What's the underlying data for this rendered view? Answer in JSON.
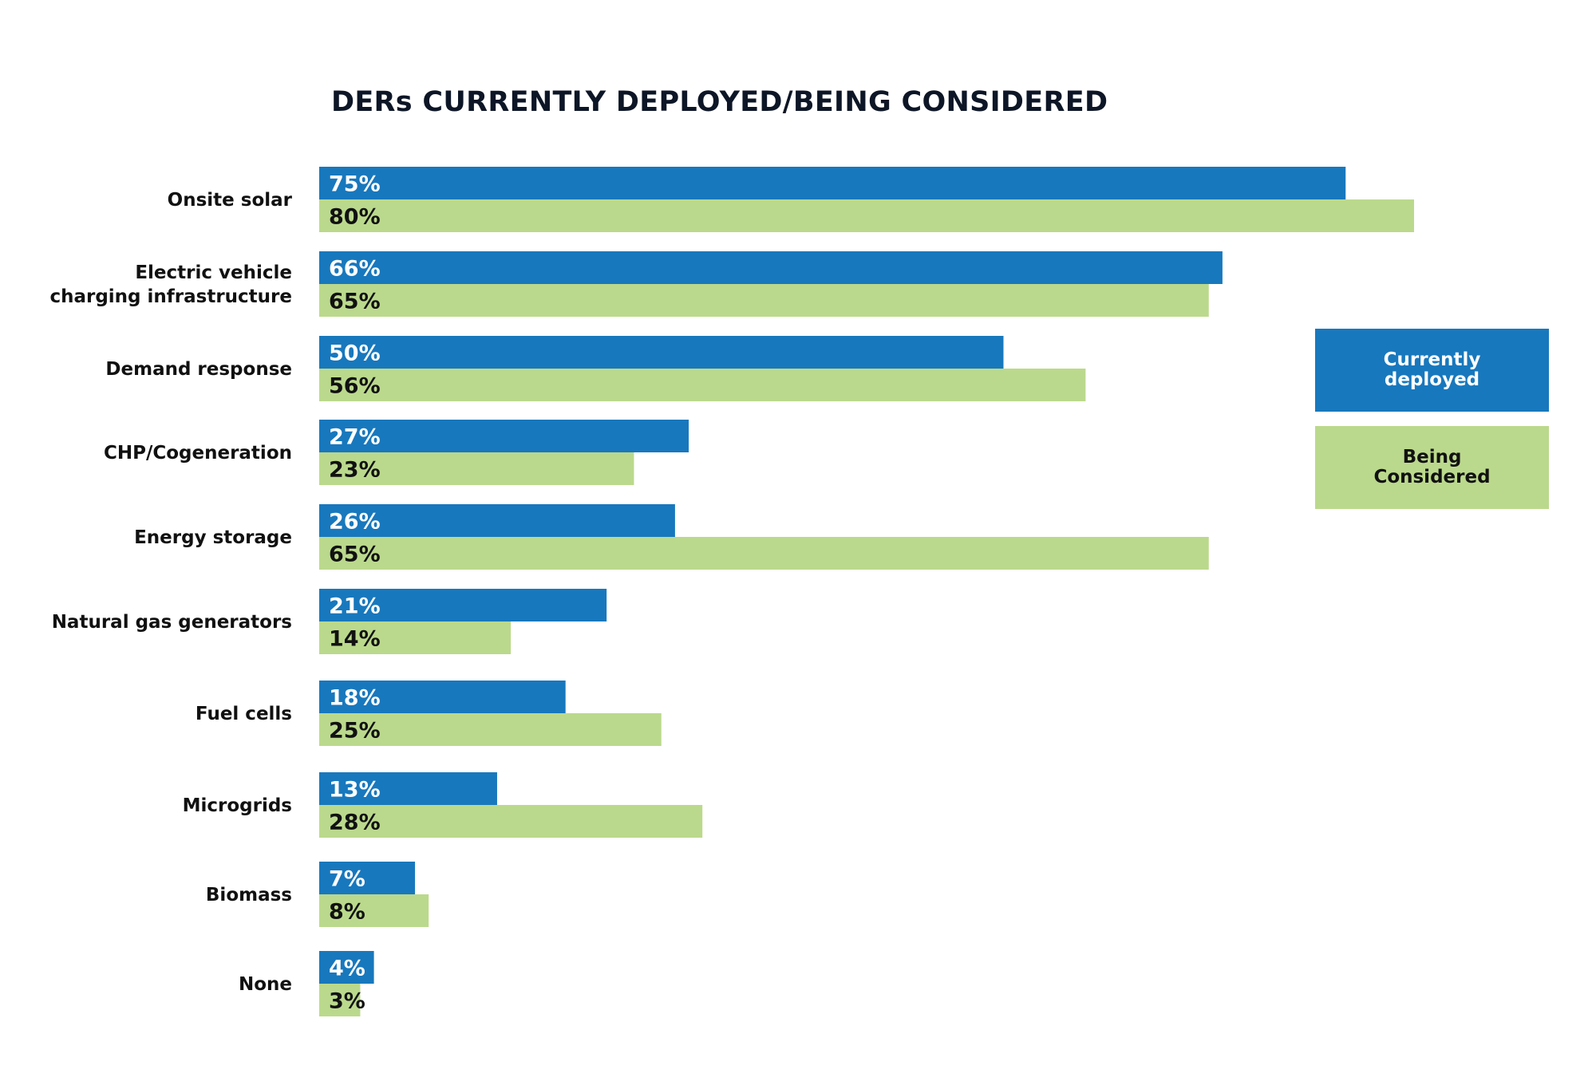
{
  "colors": {
    "deployed": "#1878bd",
    "considered": "#bbd98c",
    "deployed_label": "#ffffff",
    "considered_label": "#111111"
  },
  "chart_data": {
    "type": "bar",
    "orientation": "horizontal",
    "title": "DERs CURRENTLY DEPLOYED/BEING CONSIDERED",
    "categories": [
      [
        "Onsite solar"
      ],
      [
        "Electric vehicle",
        "charging infrastructure"
      ],
      [
        "Demand response"
      ],
      [
        "CHP/Cogeneration"
      ],
      [
        "Energy storage"
      ],
      [
        "Natural gas generators"
      ],
      [
        "Fuel cells"
      ],
      [
        "Microgrids"
      ],
      [
        "Biomass"
      ],
      [
        "None"
      ]
    ],
    "series": [
      {
        "name": "Currently deployed",
        "values": [
          75,
          66,
          50,
          27,
          26,
          21,
          18,
          13,
          7,
          4
        ],
        "labels": [
          "75%",
          "66%",
          "50%",
          "27%",
          "26%",
          "21%",
          "18%",
          "13%",
          "7%",
          "4%"
        ]
      },
      {
        "name": "Being Considered",
        "values": [
          80,
          65,
          56,
          23,
          65,
          14,
          25,
          28,
          8,
          3
        ],
        "labels": [
          "80%",
          "65%",
          "56%",
          "23%",
          "65%",
          "14%",
          "25%",
          "28%",
          "8%",
          "3%"
        ]
      }
    ],
    "xlim": [
      0,
      100
    ],
    "grid": false,
    "legend_position": "right"
  },
  "legend": {
    "deployed_label": "Currently deployed",
    "considered_label": "Being Considered"
  }
}
